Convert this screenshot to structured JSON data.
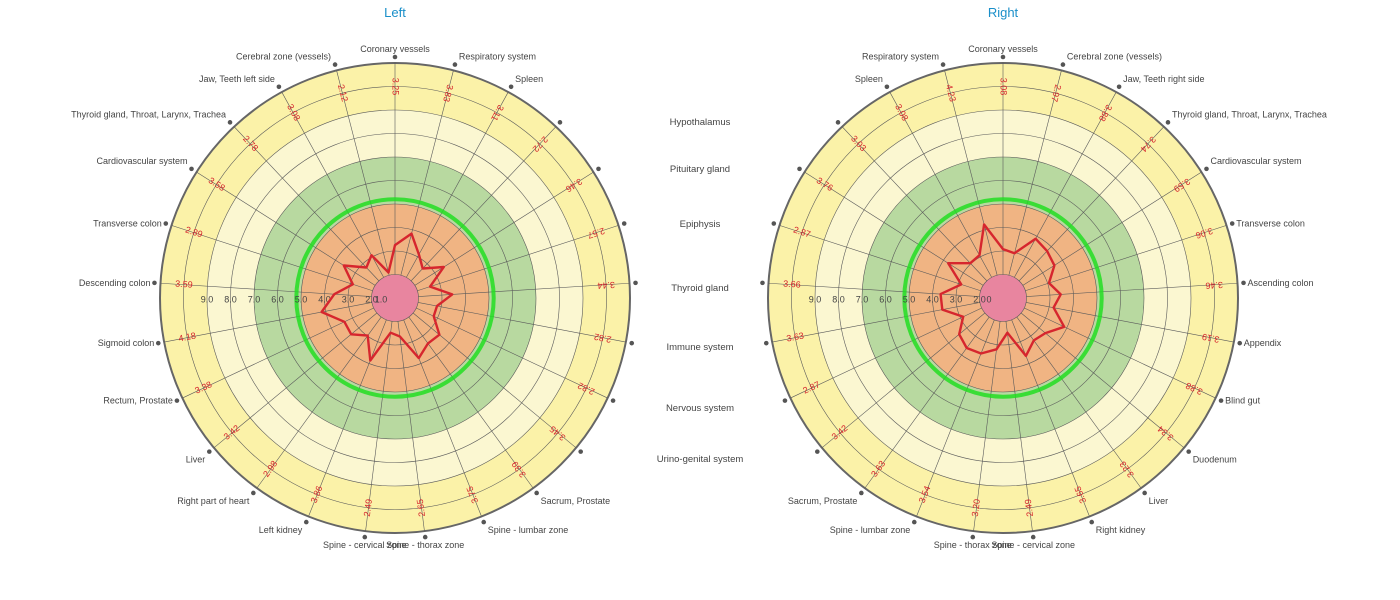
{
  "colors": {
    "title": "#1a8fc9",
    "series_line": "#d6262e",
    "value_text": "#d6262e",
    "zone_1_2": "#e8859f",
    "zone_2_5": "#f0b483",
    "zone_5_7": "#b8d9a0",
    "zone_7_9": "#fbf7d1",
    "zone_9_11": "#fbf2a8",
    "normal_ring": "#22dd22",
    "grid": "#5a5a5a"
  },
  "center_labels": [
    "Hypothalamus",
    "Pituitary gland",
    "Epiphysis",
    "Thyroid gland",
    "Immune system",
    "Nervous system",
    "Urino-genital system"
  ],
  "chart_data": [
    {
      "type": "radar",
      "title": "Left",
      "radial_range": [
        1,
        11
      ],
      "radial_ticks": [
        "2.0",
        "3.0",
        "4.0",
        "5.0",
        "6.0",
        "7.0",
        "8.0",
        "9.0"
      ],
      "center_tick": "1.0",
      "normal_ring_value": 5.2,
      "grid": true,
      "direction": "clockwise",
      "categories": [
        "Coronary vessels",
        "Respiratory system",
        "Spleen",
        "",
        "",
        "",
        "",
        "",
        "",
        "",
        "Sacrum, Prostate",
        "Spine - lumbar zone",
        "Spine - thorax zone",
        "Spine - cervical zone",
        "Left kidney",
        "Right part of heart",
        "Liver",
        "Rectum, Prostate",
        "Sigmoid colon",
        "Descending colon",
        "Transverse colon",
        "Cardiovascular system",
        "Thyroid gland, Throat, Larynx, Trachea",
        "Jaw, Teeth left side",
        "Cerebral zone (vessels)"
      ],
      "values": [
        3.25,
        3.83,
        3.11,
        2.72,
        3.46,
        2.57,
        3.44,
        2.82,
        2.82,
        3.45,
        3.39,
        3.75,
        2.65,
        2.49,
        3.86,
        2.98,
        3.42,
        3.38,
        4.18,
        3.59,
        2.89,
        3.58,
        2.78,
        3.08,
        2.12
      ]
    },
    {
      "type": "radar",
      "title": "Right",
      "radial_range": [
        1,
        11
      ],
      "radial_ticks": [
        "2.0",
        "3.0",
        "4.0",
        "5.0",
        "6.0",
        "7.0",
        "8.0",
        "9.0"
      ],
      "center_tick": "0",
      "normal_ring_value": 5.2,
      "grid": true,
      "direction": "clockwise",
      "categories": [
        "Coronary vessels",
        "Cerebral zone (vessels)",
        "Jaw, Teeth right side",
        "Thyroid gland, Throat, Larynx, Trachea",
        "Cardiovascular system",
        "Transverse colon",
        "Ascending colon",
        "Appendix",
        "Blind gut",
        "Duodenum",
        "Liver",
        "Right kidney",
        "Spine - cervical zone",
        "Spine - thorax zone",
        "Spine - lumbar zone",
        "Sacrum, Prostate",
        "",
        "",
        "",
        "",
        "",
        "",
        "",
        "Spleen",
        "Respiratory system"
      ],
      "values": [
        3.08,
        2.97,
        3.88,
        3.74,
        3.59,
        3.06,
        3.46,
        3.19,
        3.88,
        3.34,
        3.23,
        3.65,
        2.49,
        3.2,
        3.54,
        3.63,
        3.42,
        2.87,
        3.63,
        3.66,
        2.87,
        3.76,
        3.03,
        3.08,
        4.23
      ]
    }
  ]
}
